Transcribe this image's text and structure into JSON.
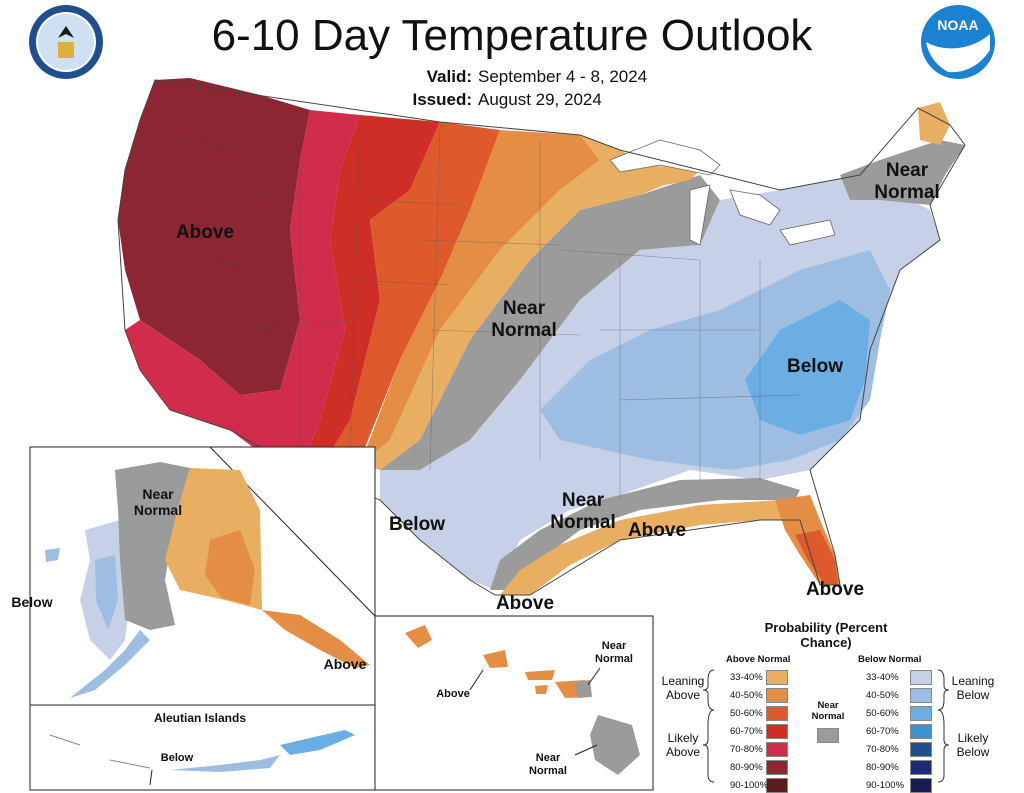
{
  "title": "6-10 Day Temperature Outlook",
  "valid_label": "Valid:",
  "valid_value": "September 4 - 8, 2024",
  "issued_label": "Issued:",
  "issued_value": "August 29, 2024",
  "seal_icon": "department-of-commerce-seal",
  "noaa_icon": "noaa-logo",
  "map_labels": {
    "above_west": "Above",
    "near_normal_plains": "Near Normal",
    "near_normal_ne": "Near Normal",
    "below_east": "Below",
    "below_texas": "Below",
    "near_normal_gulf": "Near Normal",
    "above_gulf": "Above",
    "above_texas": "Above",
    "above_florida": "Above"
  },
  "alaska": {
    "near_normal": "Near Normal",
    "below": "Below",
    "above": "Above"
  },
  "aleutian": {
    "title": "Aleutian Islands",
    "below": "Below"
  },
  "hawaii": {
    "near_normal_top": "Near Normal",
    "above": "Above",
    "near_normal_bottom": "Near Normal"
  },
  "legend": {
    "title": "Probability (Percent Chance)",
    "above_header": "Above Normal",
    "below_header": "Below Normal",
    "near_normal": "Near Normal",
    "leaning_above": "Leaning Above",
    "likely_above": "Likely Above",
    "leaning_below": "Leaning Below",
    "likely_below": "Likely Below",
    "above_rows": [
      {
        "label": "33-40%",
        "color": "#E8AE62"
      },
      {
        "label": "40-50%",
        "color": "#E38E44"
      },
      {
        "label": "50-60%",
        "color": "#DE5A2C"
      },
      {
        "label": "60-70%",
        "color": "#CF2E27"
      },
      {
        "label": "70-80%",
        "color": "#D12C4C"
      },
      {
        "label": "80-90%",
        "color": "#8B2632"
      },
      {
        "label": "90-100%",
        "color": "#5B1E1E"
      }
    ],
    "below_rows": [
      {
        "label": "33-40%",
        "color": "#C6D1E8"
      },
      {
        "label": "40-50%",
        "color": "#9DBDE2"
      },
      {
        "label": "50-60%",
        "color": "#6BAEE4"
      },
      {
        "label": "60-70%",
        "color": "#3D93D1"
      },
      {
        "label": "70-80%",
        "color": "#1F4F8F"
      },
      {
        "label": "80-90%",
        "color": "#1C2A78"
      },
      {
        "label": "90-100%",
        "color": "#181E55"
      }
    ],
    "near_color": "#9B9B9B"
  }
}
